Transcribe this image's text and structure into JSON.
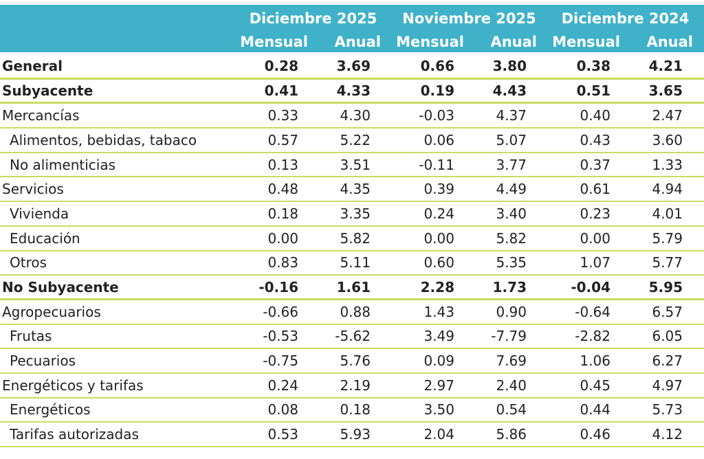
{
  "table": {
    "group_headers": [
      "Diciembre 2025",
      "Noviembre 2025",
      "Diciembre 2024"
    ],
    "sub_headers": [
      "Mensual",
      "Anual",
      "Mensual",
      "Anual",
      "Mensual",
      "Anual"
    ],
    "rows": [
      {
        "label": "General",
        "values": [
          "0.28",
          "3.69",
          "0.66",
          "3.80",
          "0.38",
          "4.21"
        ]
      },
      {
        "label": "Subyacente",
        "values": [
          "0.41",
          "4.33",
          "0.19",
          "4.43",
          "0.51",
          "3.65"
        ]
      },
      {
        "label": "Mercancías",
        "values": [
          "0.33",
          "4.30",
          "-0.03",
          "4.37",
          "0.40",
          "2.47"
        ]
      },
      {
        "label": "Alimentos, bebidas, tabaco",
        "values": [
          "0.57",
          "5.22",
          "0.06",
          "5.07",
          "0.43",
          "3.60"
        ]
      },
      {
        "label": "No alimenticias",
        "values": [
          "0.13",
          "3.51",
          "-0.11",
          "3.77",
          "0.37",
          "1.33"
        ]
      },
      {
        "label": "Servicios",
        "values": [
          "0.48",
          "4.35",
          "0.39",
          "4.49",
          "0.61",
          "4.94"
        ]
      },
      {
        "label": "Vivienda",
        "values": [
          "0.18",
          "3.35",
          "0.24",
          "3.40",
          "0.23",
          "4.01"
        ]
      },
      {
        "label": "Educación",
        "values": [
          "0.00",
          "5.82",
          "0.00",
          "5.82",
          "0.00",
          "5.79"
        ]
      },
      {
        "label": "Otros",
        "values": [
          "0.83",
          "5.11",
          "0.60",
          "5.35",
          "1.07",
          "5.77"
        ]
      },
      {
        "label": "No Subyacente",
        "values": [
          "-0.16",
          "1.61",
          "2.28",
          "1.73",
          "-0.04",
          "5.95"
        ]
      },
      {
        "label": "Agropecuarios",
        "values": [
          "-0.66",
          "0.88",
          "1.43",
          "0.90",
          "-0.64",
          "6.57"
        ]
      },
      {
        "label": "Frutas",
        "values": [
          "-0.53",
          "-5.62",
          "3.49",
          "-7.79",
          "-2.82",
          "6.05"
        ]
      },
      {
        "label": "Pecuarios",
        "values": [
          "-0.75",
          "5.76",
          "0.09",
          "7.69",
          "1.06",
          "6.27"
        ]
      },
      {
        "label": "Energéticos y tarifas",
        "values": [
          "0.24",
          "2.19",
          "2.97",
          "2.40",
          "0.45",
          "4.97"
        ]
      },
      {
        "label": "Energéticos",
        "values": [
          "0.08",
          "0.18",
          "3.50",
          "0.54",
          "0.44",
          "5.73"
        ]
      },
      {
        "label": "Tarifas autorizadas",
        "values": [
          "0.53",
          "5.93",
          "2.04",
          "5.86",
          "0.46",
          "4.12"
        ]
      }
    ]
  },
  "colors": {
    "header_bg": "#3fb2c9",
    "rule": "#c8dc63"
  }
}
